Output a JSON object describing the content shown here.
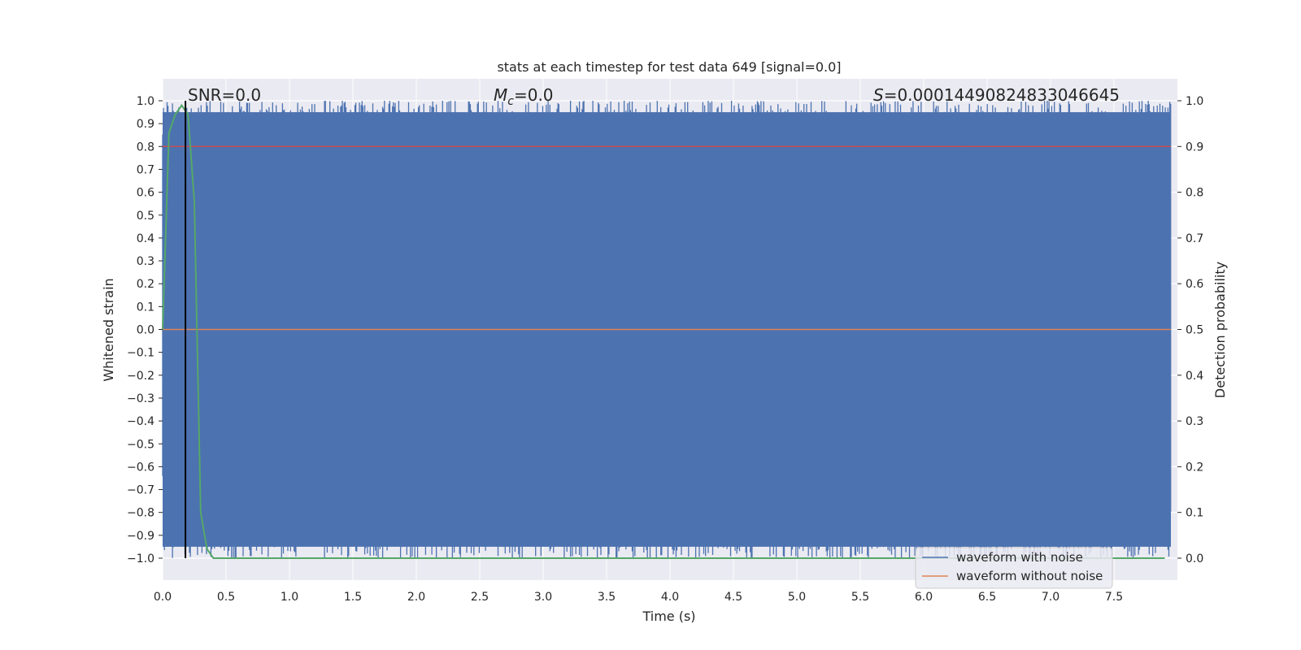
{
  "chart_data": {
    "type": "line",
    "title": "stats at each timestep for test data 649 [signal=0.0]",
    "xlabel": "Time (s)",
    "ylabel": "Whitened strain",
    "y2label": "Detection probability",
    "xlim": [
      0.0,
      8.0
    ],
    "ylim": [
      -1.0,
      1.0
    ],
    "y2lim": [
      0.0,
      1.0
    ],
    "xticks": [
      "0.0",
      "0.5",
      "1.0",
      "1.5",
      "2.0",
      "2.5",
      "3.0",
      "3.5",
      "4.0",
      "4.5",
      "5.0",
      "5.5",
      "6.0",
      "6.5",
      "7.0",
      "7.5"
    ],
    "yticks": [
      "1.0",
      "0.9",
      "0.8",
      "0.7",
      "0.6",
      "0.5",
      "0.4",
      "0.3",
      "0.2",
      "0.1",
      "0.0",
      "−0.1",
      "−0.2",
      "−0.3",
      "−0.4",
      "−0.5",
      "−0.6",
      "−0.7",
      "−0.8",
      "−0.9",
      "−1.0"
    ],
    "y2ticks": [
      "1.0",
      "0.9",
      "0.8",
      "0.7",
      "0.6",
      "0.5",
      "0.4",
      "0.3",
      "0.2",
      "0.1",
      "0.0"
    ],
    "annotations": {
      "snr_label": "SNR=0.0",
      "mc_symbol": "M",
      "mc_sub": "c",
      "mc_value": "=0.0",
      "s_symbol": "S",
      "s_value": "=0.0001449082483304664​5"
    },
    "marker_time": 0.18,
    "threshold": 0.9,
    "series": [
      {
        "name": "waveform with noise",
        "color": "#4c72b0",
        "style": "noisy band between -1.0 and 1.0"
      },
      {
        "name": "waveform without noise",
        "color": "#dd8452",
        "values": "constant 0.0"
      },
      {
        "name": "detection probability",
        "color": "#55a868",
        "x": [
          0.0,
          0.05,
          0.1,
          0.15,
          0.2,
          0.25,
          0.3,
          0.35,
          0.4,
          1.0,
          7.9
        ],
        "y": [
          0.5,
          0.93,
          0.97,
          0.99,
          0.97,
          0.78,
          0.1,
          0.02,
          0.0,
          0.0,
          0.0
        ]
      }
    ],
    "legend": [
      "waveform with noise",
      "waveform without noise"
    ],
    "legend_position": "lower-right",
    "colors": {
      "background": "#eaeaf2",
      "grid": "#ffffff",
      "noise": "#4c72b0",
      "clean": "#dd8452",
      "threshold": "#c44e52",
      "probability": "#55a868",
      "marker": "#000000"
    }
  }
}
